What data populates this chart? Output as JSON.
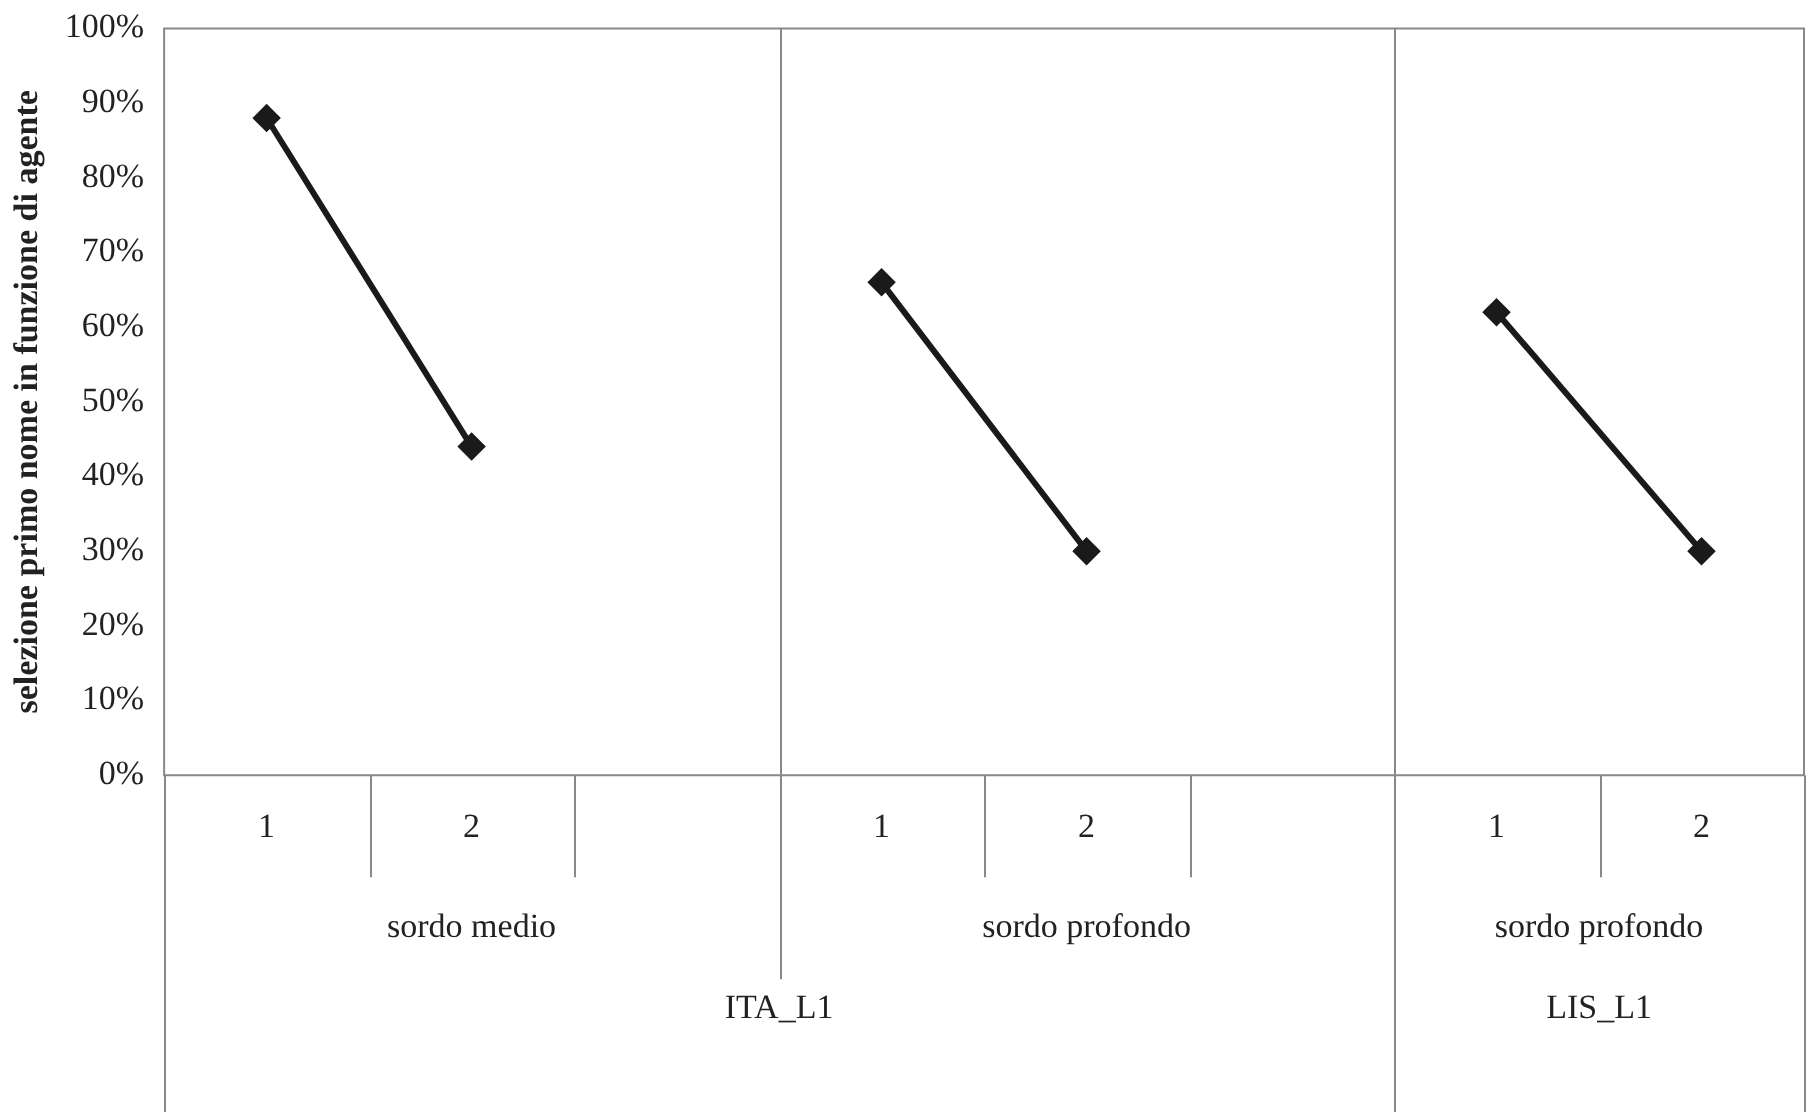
{
  "chart_data": {
    "type": "line",
    "ylabel": "selezione primo nome in funzione di agente",
    "categories": [
      "1",
      "2",
      null,
      "1",
      "2",
      null,
      "1",
      "2"
    ],
    "series": [
      {
        "color": "#1a1a1a",
        "values": [
          88,
          44,
          null,
          66,
          30,
          null,
          62,
          30
        ]
      }
    ],
    "ylim": [
      0,
      100
    ],
    "yticks": [
      {
        "value": 0,
        "label": "0%"
      },
      {
        "value": 10,
        "label": "10%"
      },
      {
        "value": 20,
        "label": "20%"
      },
      {
        "value": 30,
        "label": "30%"
      },
      {
        "value": 40,
        "label": "40%"
      },
      {
        "value": 50,
        "label": "50%"
      },
      {
        "value": 60,
        "label": "60%"
      },
      {
        "value": 70,
        "label": "70%"
      },
      {
        "value": 80,
        "label": "80%"
      },
      {
        "value": 90,
        "label": "90%"
      },
      {
        "value": 100,
        "label": "100%"
      }
    ],
    "annotations": [
      "sordo medio",
      "sordo profondo",
      "sordo profondo",
      "ITA_L1",
      "LIS_L1"
    ],
    "grid": false,
    "legend": false,
    "marker": "diamond",
    "line_style": "solid"
  }
}
